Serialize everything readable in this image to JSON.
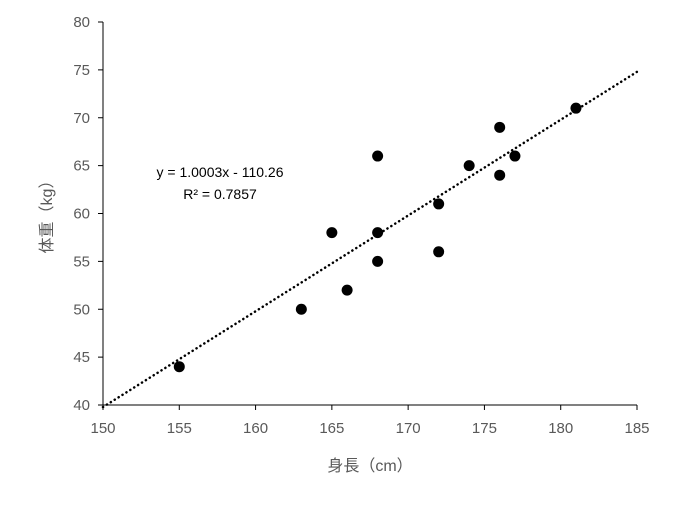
{
  "chart_data": {
    "type": "scatter",
    "title": "",
    "xlabel": "身長（cm）",
    "ylabel": "体重（kg）",
    "xlim": [
      150,
      185
    ],
    "ylim": [
      40,
      80
    ],
    "xticks": [
      150,
      155,
      160,
      165,
      170,
      175,
      180,
      185
    ],
    "yticks": [
      40,
      45,
      50,
      55,
      60,
      65,
      70,
      75,
      80
    ],
    "grid": false,
    "points": [
      {
        "x": 155,
        "y": 44
      },
      {
        "x": 163,
        "y": 50
      },
      {
        "x": 165,
        "y": 58
      },
      {
        "x": 166,
        "y": 52
      },
      {
        "x": 168,
        "y": 66
      },
      {
        "x": 168,
        "y": 58
      },
      {
        "x": 168,
        "y": 55
      },
      {
        "x": 172,
        "y": 61
      },
      {
        "x": 172,
        "y": 56
      },
      {
        "x": 174,
        "y": 65
      },
      {
        "x": 176,
        "y": 69
      },
      {
        "x": 176,
        "y": 64
      },
      {
        "x": 177,
        "y": 66
      },
      {
        "x": 181,
        "y": 71
      }
    ],
    "trendline": {
      "type": "linear",
      "slope": 1.0003,
      "intercept": -110.26,
      "style": "dotted"
    },
    "annotations": {
      "equation": "y = 1.0003x - 110.26",
      "r2": "R² = 0.7857"
    },
    "colors": {
      "marker": "#000000",
      "axis": "#000000",
      "text": "#595959"
    }
  }
}
